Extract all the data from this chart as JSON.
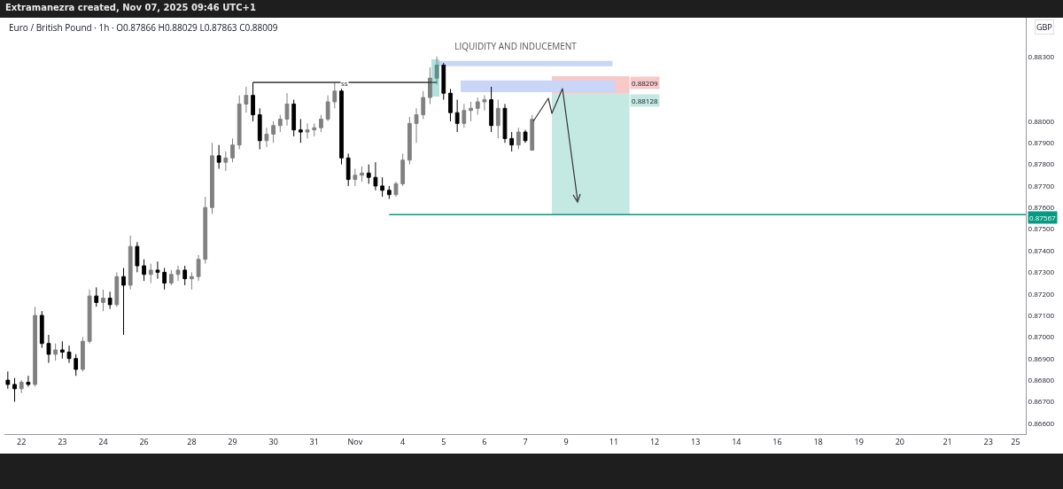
{
  "chart_data": {
    "type": "candlestick",
    "title": "LIQUIDITY AND INDUCEMENT",
    "ylabel": "GBP",
    "annotations": [
      "Extramanezra created, Nov 07, 2025 09:46 UTC+1",
      "Euro / British Pound · 1h · O0.87866 H0.88029 L0.87863 C0.88009"
    ],
    "colors": [
      "#000000",
      "#000000",
      "#808080",
      "#000000",
      "#808080",
      "#000000",
      "#000000",
      "#808080",
      "#000000",
      "#000000",
      "#000000",
      "#808080",
      "#808080",
      "#000000",
      "#808080",
      "#000000",
      "#808080",
      "#000000",
      "#808080",
      "#000000",
      "#000000",
      "#808080",
      "#000000",
      "#000000",
      "#808080",
      "#808080",
      "#000000",
      "#808080",
      "#808080",
      "#808080",
      "#808080",
      "#000000",
      "#808080",
      "#808080",
      "#808080",
      "#808080",
      "#000000",
      "#000000",
      "#808080",
      "#808080",
      "#808080",
      "#808080",
      "#000000",
      "#000000",
      "#808080",
      "#808080",
      "#808080",
      "#808080",
      "#808080",
      "#000000",
      "#000000",
      "#808080",
      "#808080",
      "#000000",
      "#000000",
      "#000000",
      "#000000",
      "#808080",
      "#808080",
      "#808080",
      "#808080",
      "#808080",
      "#808080",
      "#808080",
      "#000000",
      "#000000",
      "#000000",
      "#808080",
      "#808080",
      "#808080",
      "#808080",
      "#000000",
      "#808080",
      "#000000",
      "#000000",
      "#808080",
      "#000000",
      "#808080",
      null,
      null,
      null,
      null,
      null,
      null,
      null,
      null,
      null,
      null,
      null,
      null,
      null,
      null,
      null,
      null,
      null,
      null,
      null,
      null,
      null,
      null,
      null,
      null,
      null,
      null,
      null,
      null,
      null,
      null,
      null,
      null,
      null,
      null,
      null,
      null,
      null,
      null,
      null,
      null,
      null,
      null,
      null,
      null,
      null,
      null,
      null,
      null,
      null,
      null,
      null,
      null,
      null,
      null,
      null,
      null,
      null,
      null,
      null,
      null,
      null,
      null,
      null,
      null,
      null,
      null,
      null,
      null,
      null,
      null,
      null,
      null
    ],
    "categories": [
      null,
      null,
      "22",
      null,
      null,
      null,
      null,
      null,
      "23",
      null,
      null,
      null,
      null,
      null,
      "24",
      null,
      null,
      null,
      null,
      null,
      "26",
      null,
      null,
      null,
      null,
      null,
      null,
      "28",
      null,
      null,
      null,
      null,
      null,
      "29",
      null,
      null,
      null,
      null,
      null,
      "30",
      null,
      null,
      null,
      null,
      null,
      "31",
      null,
      null,
      null,
      null,
      null,
      "Nov",
      null,
      null,
      null,
      null,
      null,
      null,
      "4",
      null,
      null,
      null,
      null,
      null,
      "5",
      null,
      null,
      null,
      null,
      null,
      "6",
      null,
      null,
      null,
      null,
      null,
      "7",
      null,
      null,
      null,
      null,
      null,
      "9",
      null,
      null,
      null,
      null,
      null,
      null,
      "11",
      null,
      null,
      null,
      null,
      null,
      "12",
      null,
      null,
      null,
      null,
      null,
      "13",
      null,
      null,
      null,
      null,
      null,
      "14",
      null,
      null,
      null,
      null,
      null,
      "16",
      null,
      null,
      null,
      null,
      null,
      "18",
      null,
      null,
      null,
      null,
      null,
      "19",
      null,
      null,
      null,
      null,
      null,
      "20",
      null,
      null,
      null,
      null,
      null,
      null,
      "21",
      null,
      null,
      null,
      null,
      null,
      "23",
      null,
      null,
      null,
      "25",
      null
    ],
    "ohlc": [
      [
        0.868,
        0.8684,
        0.8676,
        0.8678
      ],
      [
        0.8678,
        0.8681,
        0.867,
        0.8676
      ],
      [
        0.8676,
        0.868,
        0.8674,
        0.8679
      ],
      [
        0.8679,
        0.8682,
        0.8677,
        0.8678
      ],
      [
        0.8678,
        0.8714,
        0.8677,
        0.871
      ],
      [
        0.871,
        0.8712,
        0.8695,
        0.8697
      ],
      [
        0.8697,
        0.8701,
        0.8688,
        0.8692
      ],
      [
        0.8692,
        0.8697,
        0.8689,
        0.8694
      ],
      [
        0.8694,
        0.8698,
        0.869,
        0.8693
      ],
      [
        0.8693,
        0.8696,
        0.8688,
        0.869
      ],
      [
        0.869,
        0.8692,
        0.8682,
        0.8685
      ],
      [
        0.8685,
        0.87,
        0.8684,
        0.8698
      ],
      [
        0.8698,
        0.8722,
        0.8697,
        0.8719
      ],
      [
        0.8719,
        0.8723,
        0.8714,
        0.8716
      ],
      [
        0.8716,
        0.8722,
        0.8712,
        0.8718
      ],
      [
        0.8718,
        0.8721,
        0.8713,
        0.8715
      ],
      [
        0.8715,
        0.873,
        0.8714,
        0.8728
      ],
      [
        0.8728,
        0.8732,
        0.8701,
        0.8724
      ],
      [
        0.8724,
        0.8747,
        0.8722,
        0.8742
      ],
      [
        0.8742,
        0.8744,
        0.873,
        0.8733
      ],
      [
        0.8733,
        0.8736,
        0.8726,
        0.8729
      ],
      [
        0.8729,
        0.8734,
        0.8725,
        0.8731
      ],
      [
        0.8731,
        0.8735,
        0.8727,
        0.873
      ],
      [
        0.873,
        0.8732,
        0.8722,
        0.8725
      ],
      [
        0.8725,
        0.8731,
        0.8724,
        0.8729
      ],
      [
        0.8729,
        0.8733,
        0.8726,
        0.8731
      ],
      [
        0.8731,
        0.8733,
        0.8724,
        0.8727
      ],
      [
        0.8727,
        0.873,
        0.8722,
        0.8728
      ],
      [
        0.8728,
        0.8738,
        0.8726,
        0.8736
      ],
      [
        0.8736,
        0.8765,
        0.8734,
        0.876
      ],
      [
        0.876,
        0.879,
        0.8757,
        0.8784
      ],
      [
        0.8784,
        0.8789,
        0.8778,
        0.8781
      ],
      [
        0.8781,
        0.8786,
        0.8777,
        0.8783
      ],
      [
        0.8783,
        0.8792,
        0.8781,
        0.8789
      ],
      [
        0.8789,
        0.8812,
        0.8787,
        0.8808
      ],
      [
        0.8808,
        0.8816,
        0.8804,
        0.8812
      ],
      [
        0.8812,
        0.8818,
        0.88,
        0.8803
      ],
      [
        0.8803,
        0.8806,
        0.8787,
        0.8791
      ],
      [
        0.8791,
        0.8797,
        0.8788,
        0.8794
      ],
      [
        0.8794,
        0.88,
        0.879,
        0.8798
      ],
      [
        0.8798,
        0.8803,
        0.8795,
        0.8801
      ],
      [
        0.8801,
        0.8813,
        0.8798,
        0.8808
      ],
      [
        0.8808,
        0.881,
        0.8793,
        0.8796
      ],
      [
        0.8796,
        0.8801,
        0.879,
        0.8795
      ],
      [
        0.8795,
        0.8799,
        0.8792,
        0.8796
      ],
      [
        0.8796,
        0.8799,
        0.8793,
        0.8797
      ],
      [
        0.8797,
        0.8803,
        0.8795,
        0.8801
      ],
      [
        0.8801,
        0.8812,
        0.88,
        0.8809
      ],
      [
        0.8809,
        0.8818,
        0.8806,
        0.8814
      ],
      [
        0.8814,
        0.8815,
        0.878,
        0.8783
      ],
      [
        0.8783,
        0.8785,
        0.877,
        0.8773
      ],
      [
        0.8773,
        0.8778,
        0.877,
        0.8775
      ],
      [
        0.8775,
        0.8779,
        0.8772,
        0.8776
      ],
      [
        0.8776,
        0.878,
        0.8771,
        0.8774
      ],
      [
        0.8774,
        0.8781,
        0.8768,
        0.877
      ],
      [
        0.877,
        0.8774,
        0.8765,
        0.8768
      ],
      [
        0.8768,
        0.877,
        0.8764,
        0.8766
      ],
      [
        0.8766,
        0.8772,
        0.8765,
        0.8771
      ],
      [
        0.8771,
        0.8785,
        0.877,
        0.8782
      ],
      [
        0.8782,
        0.8802,
        0.878,
        0.8799
      ],
      [
        0.8799,
        0.8806,
        0.879,
        0.8803
      ],
      [
        0.8803,
        0.8814,
        0.8801,
        0.8811
      ],
      [
        0.8811,
        0.8825,
        0.8808,
        0.882
      ],
      [
        0.882,
        0.883,
        0.8817,
        0.8826
      ],
      [
        0.8826,
        0.8827,
        0.881,
        0.8813
      ],
      [
        0.8813,
        0.8815,
        0.88,
        0.8804
      ],
      [
        0.8804,
        0.881,
        0.8795,
        0.8799
      ],
      [
        0.8799,
        0.8808,
        0.8797,
        0.8805
      ],
      [
        0.8805,
        0.8809,
        0.88,
        0.8806
      ],
      [
        0.8806,
        0.8811,
        0.8803,
        0.8809
      ],
      [
        0.8809,
        0.8812,
        0.8805,
        0.881
      ],
      [
        0.881,
        0.8816,
        0.8795,
        0.8798
      ],
      [
        0.8798,
        0.881,
        0.8792,
        0.8806
      ],
      [
        0.8806,
        0.8808,
        0.879,
        0.8792
      ],
      [
        0.8792,
        0.8795,
        0.8786,
        0.8789
      ],
      [
        0.8789,
        0.8797,
        0.8787,
        0.8795
      ],
      [
        0.8795,
        0.8796,
        0.879,
        0.8791
      ],
      [
        0.87866,
        0.88029,
        0.87863,
        0.88009
      ],
      null,
      null,
      null,
      null,
      null,
      null,
      null,
      null,
      null,
      null,
      null,
      null,
      null,
      null,
      null,
      null,
      null,
      null,
      null,
      null,
      null,
      null,
      null,
      null,
      null,
      null,
      null,
      null,
      null,
      null,
      null,
      null,
      null,
      null,
      null,
      null,
      null,
      null,
      null,
      null,
      null,
      null,
      null,
      null,
      null,
      null,
      null,
      null,
      null,
      null,
      null,
      null,
      null,
      null,
      null,
      null,
      null,
      null,
      null,
      null,
      null,
      null,
      null,
      null,
      null,
      null,
      null,
      null,
      null,
      null,
      null,
      null
    ],
    "ylim": [
      0.8655,
      0.8848
    ],
    "yticks": [
      {
        "value": 0.866,
        "label": "0.86600"
      },
      {
        "value": 0.867,
        "label": "0.86700"
      },
      {
        "value": 0.868,
        "label": "0.86800"
      },
      {
        "value": 0.869,
        "label": "0.86900"
      },
      {
        "value": 0.87,
        "label": "0.87000"
      },
      {
        "value": 0.871,
        "label": "0.87100"
      },
      {
        "value": 0.872,
        "label": "0.87200"
      },
      {
        "value": 0.873,
        "label": "0.87300"
      },
      {
        "value": 0.874,
        "label": "0.87400"
      },
      {
        "value": 0.875,
        "label": "0.87500"
      },
      {
        "value": 0.876,
        "label": "0.87600"
      },
      {
        "value": 0.877,
        "label": "0.87700"
      },
      {
        "value": 0.878,
        "label": "0.87800"
      },
      {
        "value": 0.879,
        "label": "0.87900"
      },
      {
        "value": 0.88,
        "label": "0.88000"
      },
      {
        "value": 0.883,
        "label": "0.88300"
      }
    ],
    "ref_lines": [
      {
        "axis": "y",
        "value": 0.8818,
        "label": "ss",
        "line_style": "solid"
      },
      {
        "axis": "y",
        "value": 0.87567,
        "label": "0.87567",
        "color": "#089981",
        "line_style": "solid"
      }
    ],
    "bands": [
      {
        "axis": "y",
        "from": 0.88128,
        "to": 0.88209,
        "color": "#f7c9c9",
        "label": "0.88209"
      },
      {
        "axis": "y",
        "from": 0.87567,
        "to": 0.88128,
        "color": "#c4e8e2",
        "label": "0.88128"
      },
      {
        "axis": "y",
        "from": 0.88255,
        "to": 0.8828,
        "color": "#c9d6f8"
      },
      {
        "axis": "y",
        "from": 0.88135,
        "to": 0.88189,
        "color": "#c9d6f8"
      }
    ]
  }
}
